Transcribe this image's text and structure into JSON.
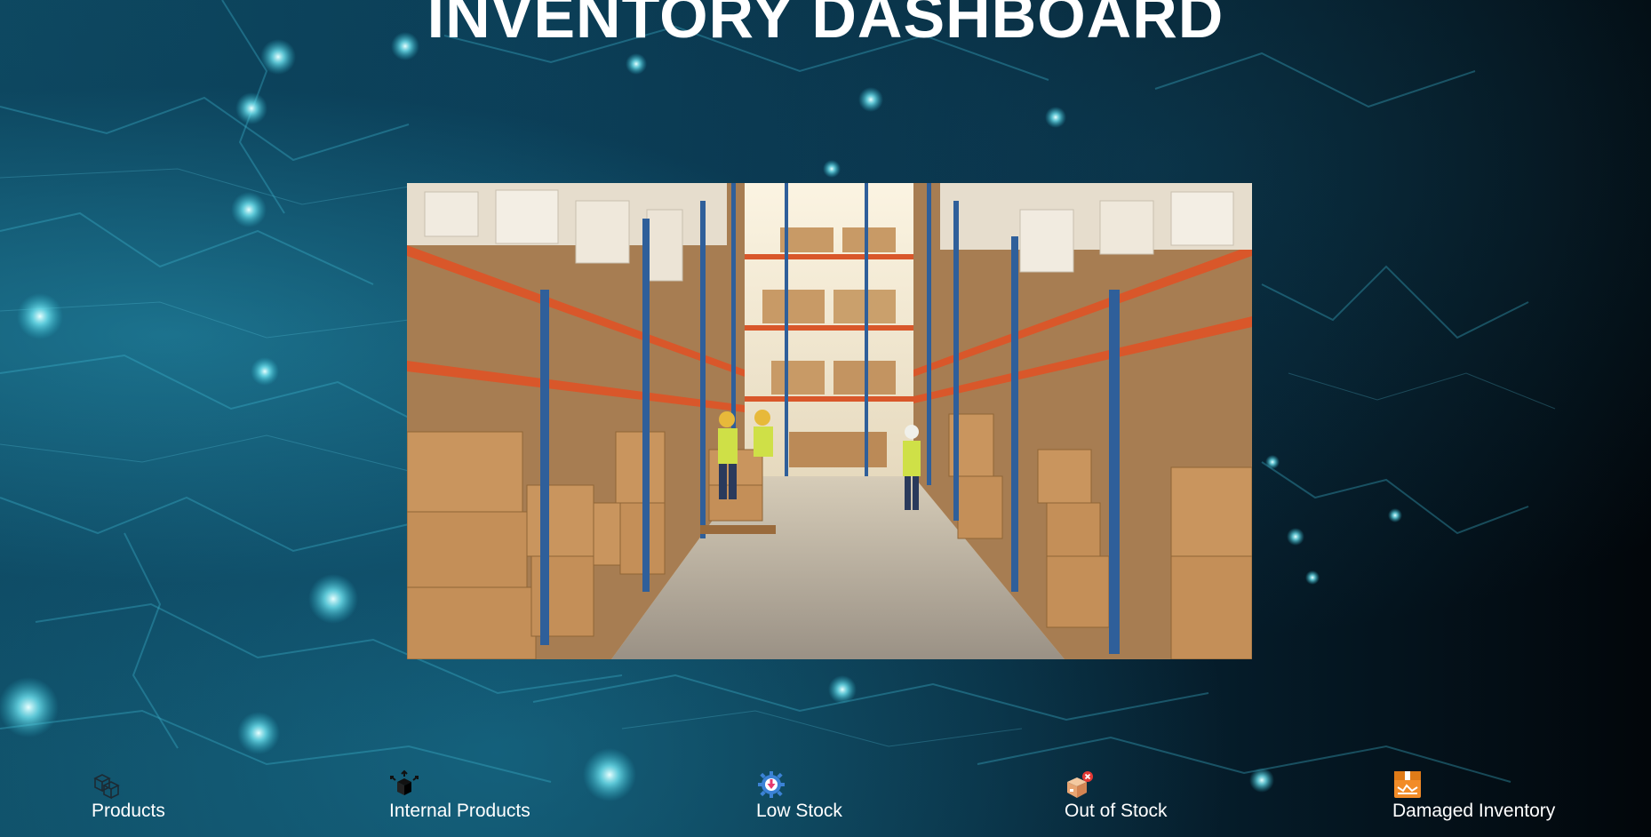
{
  "page": {
    "title": "INVENTORY DASHBOARD"
  },
  "hero": {
    "alt": "Warehouse aisle with shelves of cardboard boxes and workers"
  },
  "nav": {
    "items": [
      {
        "label": "Products",
        "icon": "boxes-icon"
      },
      {
        "label": "Internal Products",
        "icon": "box-arrows-icon"
      },
      {
        "label": "Low Stock",
        "icon": "gear-down-arrow-icon"
      },
      {
        "label": "Out of Stock",
        "icon": "box-x-icon"
      },
      {
        "label": "Damaged Inventory",
        "icon": "damaged-box-icon"
      }
    ]
  },
  "colors": {
    "title": "#ffffff",
    "label": "#ffffff",
    "low_stock_icon": "#3b82d6",
    "out_of_stock_badge": "#e53935",
    "damaged_icon": "#f28c28"
  }
}
